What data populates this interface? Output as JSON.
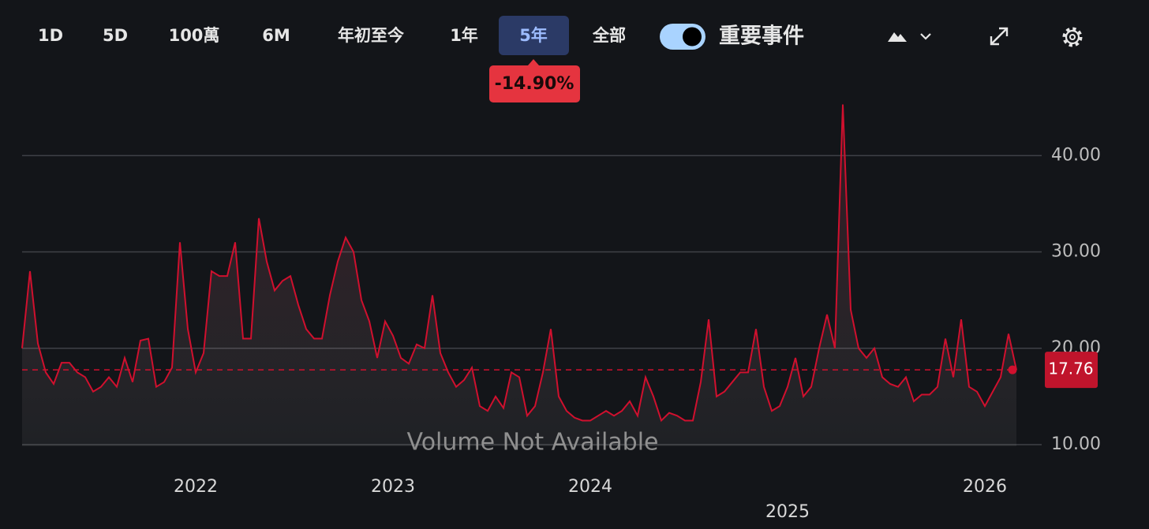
{
  "toolbar": {
    "ranges": [
      "1D",
      "5D",
      "100萬",
      "6M",
      "年初至今",
      "1年",
      "5年",
      "全部"
    ],
    "events_toggle": "重要事件"
  },
  "change_badge": "-14.90%",
  "chart_data": {
    "type": "line",
    "categories": [
      null,
      null,
      null,
      null,
      null,
      null,
      null,
      null,
      null,
      null,
      null,
      null,
      null,
      null,
      null,
      null,
      null,
      null,
      null,
      null,
      null,
      null,
      "2022",
      null,
      null,
      null,
      null,
      null,
      null,
      null,
      null,
      null,
      null,
      null,
      null,
      null,
      null,
      null,
      null,
      null,
      null,
      null,
      null,
      null,
      null,
      null,
      null,
      "2023",
      null,
      null,
      null,
      null,
      null,
      null,
      null,
      null,
      null,
      null,
      null,
      null,
      null,
      null,
      null,
      null,
      null,
      null,
      null,
      null,
      null,
      null,
      null,
      null,
      "2024",
      null,
      null,
      null,
      null,
      null,
      null,
      null,
      null,
      null,
      null,
      null,
      null,
      null,
      null,
      null,
      null,
      null,
      null,
      null,
      null,
      null,
      null,
      null,
      null,
      "2025",
      null,
      null,
      null,
      null,
      null,
      null,
      null,
      null,
      null,
      null,
      null,
      null,
      null,
      null,
      null,
      null,
      null,
      null,
      null,
      null,
      null,
      null,
      null,
      null,
      "2026",
      null,
      null,
      null,
      null
    ],
    "series": [
      {
        "color": "#d0102e",
        "values": [
          20,
          28,
          20.5,
          17.5,
          16.3,
          18.5,
          18.5,
          17.5,
          17,
          15.5,
          16,
          17,
          16,
          19,
          16.5,
          20.8,
          21,
          16,
          16.5,
          18,
          31,
          22,
          17.5,
          19.5,
          28,
          27.5,
          27.5,
          31,
          21,
          21,
          33.5,
          29,
          26,
          27,
          27.5,
          24.5,
          22,
          21,
          21,
          25.5,
          29,
          31.5,
          30,
          25,
          22.8,
          19,
          22.8,
          21.3,
          19,
          18.4,
          20.4,
          20,
          25.5,
          19.5,
          17.5,
          16,
          16.7,
          18,
          14,
          13.5,
          15,
          13.8,
          17.5,
          17,
          13,
          14,
          17.5,
          22,
          15,
          13.5,
          12.8,
          12.5,
          12.5,
          13,
          13.5,
          13,
          13.5,
          14.5,
          13,
          17,
          15,
          12.5,
          13.3,
          13,
          12.5,
          12.5,
          16.5,
          23,
          15,
          15.5,
          16.5,
          17.5,
          17.5,
          22,
          16,
          13.5,
          14,
          16,
          19,
          15,
          16,
          20,
          23.5,
          20,
          45.3,
          24,
          20,
          19,
          20,
          17,
          16.3,
          16,
          17,
          14.5,
          15.2,
          15.2,
          16,
          21,
          17,
          23,
          16,
          15.5,
          14,
          15.5,
          17,
          21.5,
          17.76
        ]
      }
    ],
    "ylim": [
      10,
      46
    ],
    "yticks": [
      {
        "value": 10,
        "label": "10.00"
      },
      {
        "value": 20,
        "label": "20.00"
      },
      {
        "value": 30,
        "label": "30.00"
      },
      {
        "value": 40,
        "label": "40.00"
      }
    ],
    "grid": true,
    "annotation": "Volume Not Available"
  }
}
